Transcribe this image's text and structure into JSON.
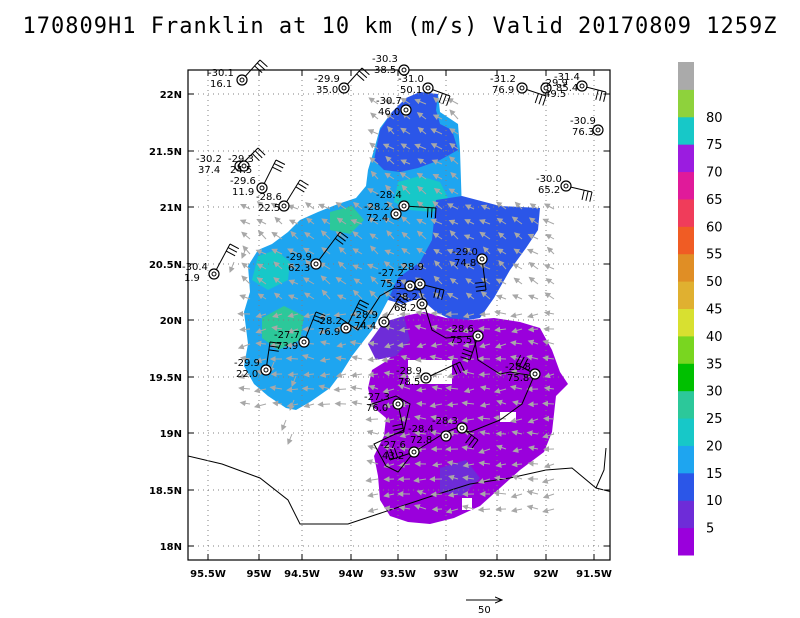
{
  "title": "170809H1 Franklin at 10 km (m/s) Valid 20170809  1259Z",
  "lon_ticks": [
    "95.5W",
    "95W",
    "94.5W",
    "94W",
    "93.5W",
    "93W",
    "92.5W",
    "92W",
    "91.5W"
  ],
  "lat_ticks": [
    "22N",
    "21.5N",
    "21N",
    "20.5N",
    "20N",
    "19.5N",
    "19N",
    "18.5N",
    "18N"
  ],
  "colorbar": {
    "labels": [
      "5",
      "10",
      "15",
      "20",
      "25",
      "30",
      "35",
      "40",
      "45",
      "50",
      "55",
      "60",
      "65",
      "70",
      "75",
      "80"
    ],
    "colors": [
      "#9a00dc",
      "#6e2cd8",
      "#2b56e8",
      "#1ea5f0",
      "#17c8c8",
      "#2cc89a",
      "#00c000",
      "#79d620",
      "#d8e030",
      "#e0b030",
      "#e08e25",
      "#f05c24",
      "#f03c5a",
      "#e01a9a",
      "#9b1ce0",
      "#17c8c8",
      "#8ed23c",
      "#aaaaaa"
    ]
  },
  "vector_scale_label": "50",
  "observations": [
    {
      "t": "-30.1",
      "w": "16.1"
    },
    {
      "t": "-29.9",
      "w": "35.0"
    },
    {
      "t": "-30.3",
      "w": "38.5"
    },
    {
      "t": "-31.0",
      "w": "50.1"
    },
    {
      "t": "-30.7",
      "w": "46.0"
    },
    {
      "t": "-31.2",
      "w": "76.9"
    },
    {
      "t": "-29.9",
      "w": "49.5"
    },
    {
      "t": "-31.4",
      "w": "85.4"
    },
    {
      "t": "-30.9",
      "w": "76.3"
    },
    {
      "t": "-30.2",
      "w": "37.4"
    },
    {
      "t": "-29.3",
      "w": "24.5"
    },
    {
      "t": "-29.6",
      "w": "11.9"
    },
    {
      "t": "-28.6",
      "w": "22.5"
    },
    {
      "t": "-30.0",
      "w": "65.2"
    },
    {
      "t": "-28.4",
      "w": ""
    },
    {
      "t": "-28.2",
      "w": "72.4"
    },
    {
      "t": "-30.4",
      "w": "1.9"
    },
    {
      "t": "-29.9",
      "w": "62.3"
    },
    {
      "t": "-29.0",
      "w": "74.8"
    },
    {
      "t": "-27.2",
      "w": "75.5"
    },
    {
      "t": "-28.9",
      "w": ""
    },
    {
      "t": "-28.2",
      "w": "68.2"
    },
    {
      "t": "-28.9",
      "w": "74.4"
    },
    {
      "t": "-28.2",
      "w": "76.9"
    },
    {
      "t": "-27.7",
      "w": "73.9"
    },
    {
      "t": "-28.6",
      "w": "75.5"
    },
    {
      "t": "-29.9",
      "w": "22.0"
    },
    {
      "t": "-28.9",
      "w": "78.5"
    },
    {
      "t": "-28.8",
      "w": "75.8"
    },
    {
      "t": "-27.3",
      "w": "76.0"
    },
    {
      "t": "-28.3",
      "w": ""
    },
    {
      "t": "-28.4",
      "w": "72.8"
    },
    {
      "t": "-27.6",
      "w": "43.2"
    }
  ]
}
